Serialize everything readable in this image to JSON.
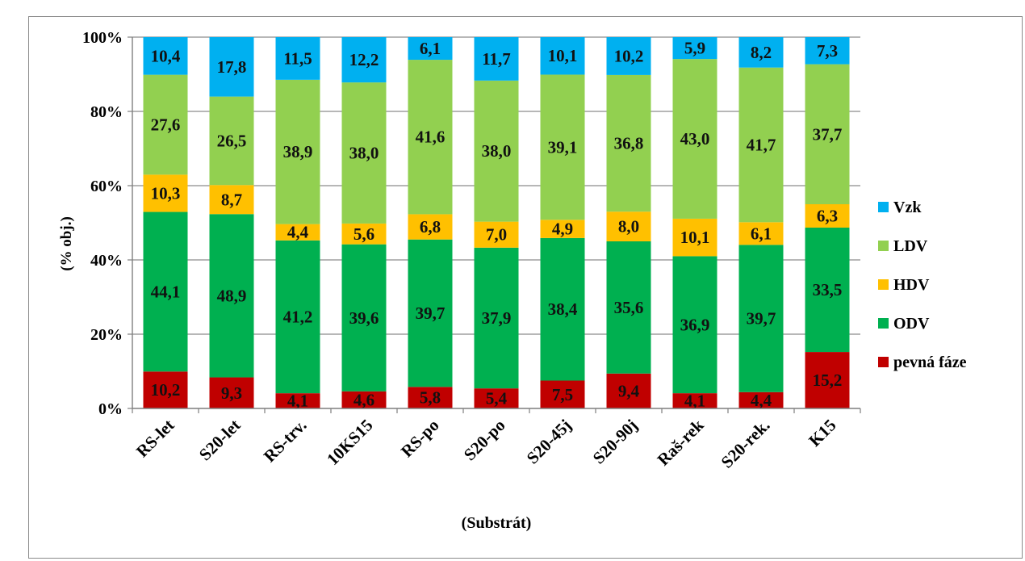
{
  "chart_data": {
    "type": "bar",
    "stacked": true,
    "normalized": true,
    "title": "",
    "xlabel": "(Substrát)",
    "ylabel": "(% obj.)",
    "ylim": [
      0,
      100
    ],
    "yticks": [
      "0%",
      "20%",
      "40%",
      "60%",
      "80%",
      "100%"
    ],
    "grid": true,
    "legend_position": "right",
    "categories": [
      "RS-let",
      "S20-let",
      "RS-trv.",
      "10KS15",
      "RS-po",
      "S20-po",
      "S20-45j",
      "S20-90j",
      "Raš-rek",
      "S20-rek.",
      "K15"
    ],
    "series": [
      {
        "name": "pevná fáze",
        "color": "#c00000",
        "values": [
          10.2,
          9.3,
          4.1,
          4.6,
          5.8,
          5.4,
          7.5,
          9.4,
          4.1,
          4.4,
          15.2
        ],
        "labels": [
          "10,2",
          "9,3",
          "4,1",
          "4,6",
          "5,8",
          "5,4",
          "7,5",
          "9,4",
          "4,1",
          "4,4",
          "15,2"
        ]
      },
      {
        "name": "ODV",
        "color": "#00b050",
        "values": [
          44.1,
          48.9,
          41.2,
          39.6,
          39.7,
          37.9,
          38.4,
          35.6,
          36.9,
          39.7,
          33.5
        ],
        "labels": [
          "44,1",
          "48,9",
          "41,2",
          "39,6",
          "39,7",
          "37,9",
          "38,4",
          "35,6",
          "36,9",
          "39,7",
          "33,5"
        ]
      },
      {
        "name": "HDV",
        "color": "#ffc000",
        "values": [
          10.3,
          8.7,
          4.4,
          5.6,
          6.8,
          7.0,
          4.9,
          8.0,
          10.1,
          6.1,
          6.3
        ],
        "labels": [
          "10,3",
          "8,7",
          "4,4",
          "5,6",
          "6,8",
          "7,0",
          "4,9",
          "8,0",
          "10,1",
          "6,1",
          "6,3"
        ]
      },
      {
        "name": "LDV",
        "color": "#92d050",
        "values": [
          27.6,
          26.5,
          38.9,
          38.0,
          41.6,
          38.0,
          39.1,
          36.8,
          43.0,
          41.7,
          37.7
        ],
        "labels": [
          "27,6",
          "26,5",
          "38,9",
          "38,0",
          "41,6",
          "38,0",
          "39,1",
          "36,8",
          "43,0",
          "41,7",
          "37,7"
        ]
      },
      {
        "name": "Vzk",
        "color": "#00b0f0",
        "values": [
          10.4,
          17.8,
          11.5,
          12.2,
          6.1,
          11.7,
          10.1,
          10.2,
          5.9,
          8.2,
          7.3
        ],
        "labels": [
          "10,4",
          "17,8",
          "11,5",
          "12,2",
          "6,1",
          "11,7",
          "10,1",
          "10,2",
          "5,9",
          "8,2",
          "7,3"
        ]
      }
    ],
    "legend_order": [
      "Vzk",
      "LDV",
      "HDV",
      "ODV",
      "pevná fáze"
    ]
  }
}
